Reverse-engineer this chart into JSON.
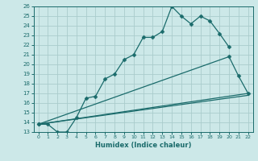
{
  "xlabel": "Humidex (Indice chaleur)",
  "ylabel": "",
  "background_color": "#cce8e8",
  "grid_color": "#aacccc",
  "line_color": "#1a6b6b",
  "xlim": [
    -0.5,
    22.5
  ],
  "ylim": [
    13,
    26
  ],
  "xticks": [
    0,
    1,
    2,
    3,
    4,
    5,
    6,
    7,
    8,
    9,
    10,
    11,
    12,
    13,
    14,
    15,
    16,
    17,
    18,
    19,
    20,
    21,
    22
  ],
  "yticks": [
    13,
    14,
    15,
    16,
    17,
    18,
    19,
    20,
    21,
    22,
    23,
    24,
    25,
    26
  ],
  "series": [
    {
      "x": [
        0,
        1,
        2,
        3,
        4,
        5,
        6,
        7,
        8,
        9,
        10,
        11,
        12,
        13,
        14,
        15,
        16,
        17,
        18,
        19,
        20
      ],
      "y": [
        13.8,
        13.8,
        13.0,
        13.0,
        14.5,
        16.5,
        16.7,
        18.5,
        19.0,
        20.5,
        21.0,
        22.8,
        22.8,
        23.4,
        26.0,
        25.0,
        24.2,
        25.0,
        24.5,
        23.2,
        21.8
      ],
      "marker": "D",
      "markersize": 2.5
    },
    {
      "x": [
        0,
        22
      ],
      "y": [
        13.8,
        17.0
      ],
      "marker": null,
      "markersize": 0
    },
    {
      "x": [
        0,
        20,
        21,
        22
      ],
      "y": [
        13.8,
        20.8,
        18.8,
        17.0
      ],
      "marker": "D",
      "markersize": 2.5
    },
    {
      "x": [
        0,
        22
      ],
      "y": [
        13.8,
        16.8
      ],
      "marker": null,
      "markersize": 0
    }
  ]
}
